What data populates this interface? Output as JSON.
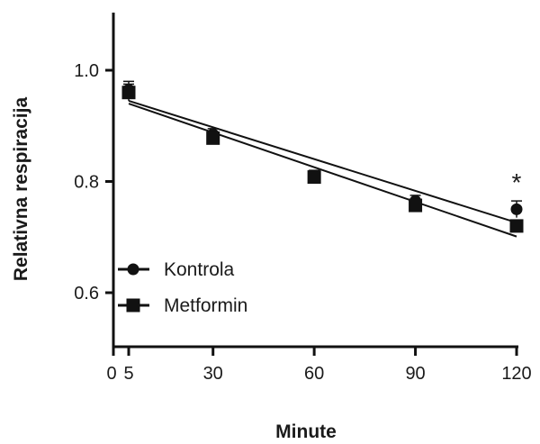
{
  "chart_data": {
    "type": "scatter",
    "xlabel": "Minute",
    "ylabel": "Relativna respiracija",
    "xlim": [
      0,
      120
    ],
    "ylim": [
      0.5,
      1.1
    ],
    "xticks": [
      0,
      5,
      30,
      60,
      90,
      120
    ],
    "xtick_labels": [
      "0",
      "5",
      "30",
      "60",
      "90",
      "120"
    ],
    "yticks": [
      0.6,
      0.8,
      1.0
    ],
    "ytick_labels": [
      "0.6",
      "0.8",
      "1.0"
    ],
    "grid": false,
    "legend_position": "bottom-left",
    "series": [
      {
        "name": "Kontrola",
        "marker": "circle",
        "color": "#111111",
        "x": [
          5,
          30,
          60,
          90,
          120
        ],
        "y": [
          0.965,
          0.885,
          0.81,
          0.765,
          0.75
        ],
        "err": [
          0.015,
          0.01,
          0.01,
          0.01,
          0.015
        ],
        "fit": {
          "x": [
            5,
            120
          ],
          "y": [
            0.945,
            0.726
          ]
        }
      },
      {
        "name": "Metformin",
        "marker": "square",
        "color": "#111111",
        "x": [
          5,
          30,
          60,
          90,
          120
        ],
        "y": [
          0.96,
          0.878,
          0.808,
          0.757,
          0.72
        ],
        "err": [
          0.015,
          0.01,
          0.01,
          0.01,
          0.01
        ],
        "fit": {
          "x": [
            5,
            120
          ],
          "y": [
            0.94,
            0.701
          ]
        }
      }
    ],
    "annotations": [
      {
        "text": "*",
        "x": 120,
        "y": 0.78
      }
    ]
  }
}
